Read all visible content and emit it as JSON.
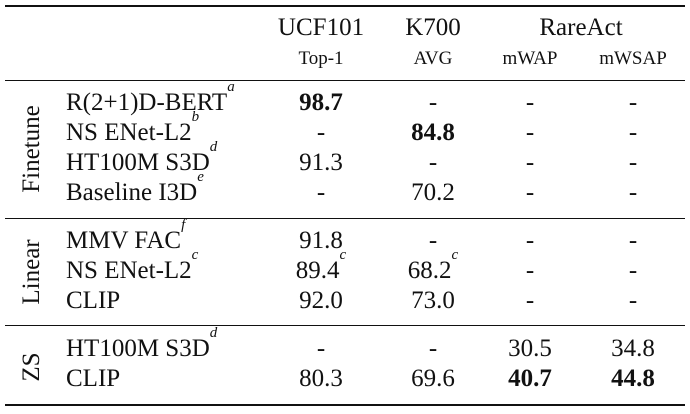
{
  "header": {
    "datasets": [
      {
        "name": "UCF101",
        "metric": "Top-1"
      },
      {
        "name": "K700",
        "metric": "AVG"
      },
      {
        "name": "RareAct",
        "metrics": [
          "mWAP",
          "mWSAP"
        ]
      }
    ]
  },
  "groups": [
    {
      "label": "Finetune",
      "rows": [
        {
          "model": "R(2+1)D-BERT",
          "sup": "a",
          "ucf": "98.7",
          "ucf_bold": true,
          "k700": "-",
          "mwap": "-",
          "mwsap": "-"
        },
        {
          "model": "NS ENet-L2",
          "sup": "b",
          "ucf": "-",
          "k700": "84.8",
          "k700_bold": true,
          "mwap": "-",
          "mwsap": "-"
        },
        {
          "model": "HT100M S3D",
          "sup": "d",
          "ucf": "91.3",
          "k700": "-",
          "mwap": "-",
          "mwsap": "-"
        },
        {
          "model": "Baseline I3D",
          "sup": "e",
          "ucf": "-",
          "k700": "70.2",
          "mwap": "-",
          "mwsap": "-"
        }
      ]
    },
    {
      "label": "Linear",
      "rows": [
        {
          "model": "MMV FAC",
          "sup": "f",
          "ucf": "91.8",
          "k700": "-",
          "mwap": "-",
          "mwsap": "-"
        },
        {
          "model": "NS ENet-L2",
          "sup": "c",
          "ucf": "89.4",
          "ucf_sup": "c",
          "k700": "68.2",
          "k700_sup": "c",
          "mwap": "-",
          "mwsap": "-"
        },
        {
          "model": "CLIP",
          "sup": "",
          "ucf": "92.0",
          "k700": "73.0",
          "mwap": "-",
          "mwsap": "-"
        }
      ]
    },
    {
      "label": "ZS",
      "rows": [
        {
          "model": "HT100M S3D",
          "sup": "d",
          "ucf": "-",
          "k700": "-",
          "mwap": "30.5",
          "mwsap": "34.8"
        },
        {
          "model": "CLIP",
          "sup": "",
          "ucf": "80.3",
          "k700": "69.6",
          "mwap": "40.7",
          "mwap_bold": true,
          "mwsap": "44.8",
          "mwsap_bold": true
        }
      ]
    }
  ]
}
